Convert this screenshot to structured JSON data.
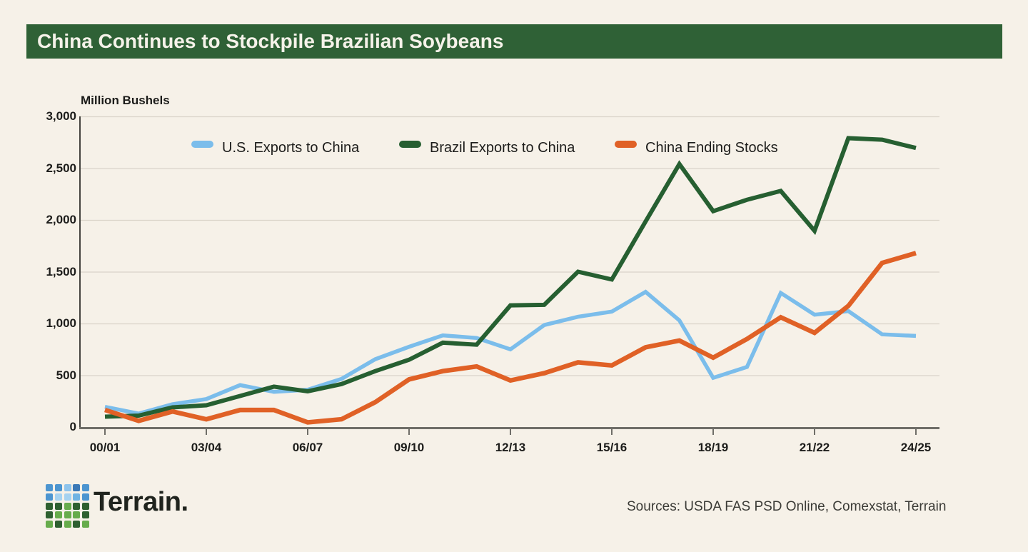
{
  "title_bar": {
    "text": "China Continues to Stockpile Brazilian Soybeans",
    "bg": "#2F6136",
    "fg": "#F5F2E9"
  },
  "chart_data": {
    "type": "line",
    "y_axis_title": "Million Bushels",
    "ylim": [
      0,
      3000
    ],
    "y_tick_step": 500,
    "y_tick_labels": [
      "0",
      "500",
      "1,000",
      "1,500",
      "2,000",
      "2,500",
      "3,000"
    ],
    "categories": [
      "00/01",
      "01/02",
      "02/03",
      "03/04",
      "04/05",
      "05/06",
      "06/07",
      "07/08",
      "08/09",
      "09/10",
      "10/11",
      "11/12",
      "12/13",
      "13/14",
      "14/15",
      "15/16",
      "16/17",
      "17/18",
      "18/19",
      "19/20",
      "20/21",
      "21/22",
      "22/23",
      "23/24",
      "24/25"
    ],
    "x_tick_labels": [
      "00/01",
      "03/04",
      "06/07",
      "09/10",
      "12/13",
      "15/16",
      "18/19",
      "21/22",
      "24/25"
    ],
    "grid": "horizontal",
    "legend_position": "top",
    "series": [
      {
        "name": "U.S. Exports to China",
        "color": "#7BBDEB",
        "values": [
          195,
          130,
          220,
          270,
          405,
          340,
          360,
          465,
          655,
          775,
          885,
          860,
          750,
          985,
          1065,
          1115,
          1305,
          1030,
          475,
          580,
          1295,
          1085,
          1120,
          895,
          880
        ]
      },
      {
        "name": "Brazil Exports to China",
        "color": "#265F31",
        "values": [
          100,
          110,
          190,
          210,
          300,
          390,
          345,
          415,
          540,
          650,
          815,
          795,
          1175,
          1180,
          1500,
          1425,
          1985,
          2540,
          2085,
          2195,
          2280,
          1895,
          2790,
          2775,
          2695
        ]
      },
      {
        "name": "China Ending Stocks",
        "color": "#E06126",
        "values": [
          165,
          60,
          150,
          75,
          165,
          165,
          45,
          75,
          240,
          460,
          540,
          585,
          450,
          520,
          625,
          595,
          770,
          835,
          670,
          850,
          1060,
          910,
          1170,
          1585,
          1680
        ]
      }
    ]
  },
  "footer": {
    "logo_text": "Terrain.",
    "sources": "Sources: USDA FAS PSD Online, Comexstat, Terrain",
    "logo_grid": [
      [
        "#4C95D0",
        "#4C95D0",
        "#8EC4EC",
        "#3A78B6",
        "#4C95D0"
      ],
      [
        "#4C95D0",
        "#A5D2F0",
        "#A5D2F0",
        "#6FB3E3",
        "#4C95D0"
      ],
      [
        "#2E6030",
        "#2E6030",
        "#67AC4C",
        "#2E6030",
        "#2E6030"
      ],
      [
        "#2E6030",
        "#67AC4C",
        "#67AC4C",
        "#67AC4C",
        "#2E6030"
      ],
      [
        "#67AC4C",
        "#2E6030",
        "#67AC4C",
        "#2E6030",
        "#67AC4C"
      ]
    ]
  }
}
